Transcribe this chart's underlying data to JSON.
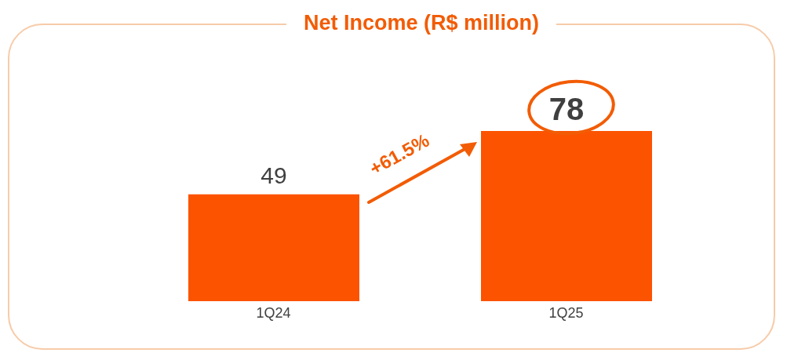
{
  "chart_data": {
    "type": "bar",
    "title": "Net Income (R$ million)",
    "categories": [
      "1Q24",
      "1Q25"
    ],
    "values": [
      49,
      78
    ],
    "color": "#fc5300",
    "data_labels": true,
    "annotations": [
      "+61.5%"
    ]
  }
}
